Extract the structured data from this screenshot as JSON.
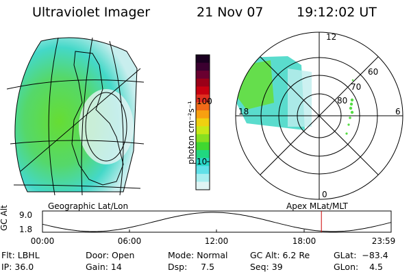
{
  "header": {
    "instrument": "Ultraviolet Imager",
    "date": "21 Nov 07",
    "time": "19:12:02 UT"
  },
  "colorbar": {
    "unit_label": "photon cm⁻²s⁻¹",
    "ticks": [
      "100",
      "10"
    ],
    "colors": [
      "#1a0020",
      "#3b0030",
      "#6a0030",
      "#9a0018",
      "#c80010",
      "#e03020",
      "#f06a18",
      "#f8a010",
      "#f0d010",
      "#c8e818",
      "#88e020",
      "#40d830",
      "#20d880",
      "#28d8c8",
      "#60e0e8",
      "#a8eef0",
      "#e0f4f4"
    ]
  },
  "left_panel": {
    "label": "Geographic Lat/Lon"
  },
  "right_panel": {
    "label": "Apex MLat/MLT",
    "mlt_labels": {
      "top": "12",
      "left": "18",
      "right": "6",
      "bottom": "0"
    },
    "lat_labels": [
      "60",
      "70",
      "80"
    ]
  },
  "altitude_plot": {
    "ylabel": "GC Alt",
    "yticks": [
      "9.0",
      "1.8"
    ],
    "xticks": [
      "00:00",
      "06:00",
      "12:00",
      "18:00",
      "23:59"
    ],
    "current_marker_hours": 19.2,
    "marker_color": "#cc0000"
  },
  "status": {
    "filter": "Flt: LBHL",
    "ip": "IP: 36.0",
    "door": "Door: Open",
    "gain": "Gain: 14",
    "mode": "Mode: Normal",
    "dsp": "Dsp:     7.5",
    "gc_alt": "GC Alt: 6.2 Re",
    "seq": "Seq: 39",
    "glat": "GLat:  −83.4",
    "glon": "GLon:    4.5"
  }
}
